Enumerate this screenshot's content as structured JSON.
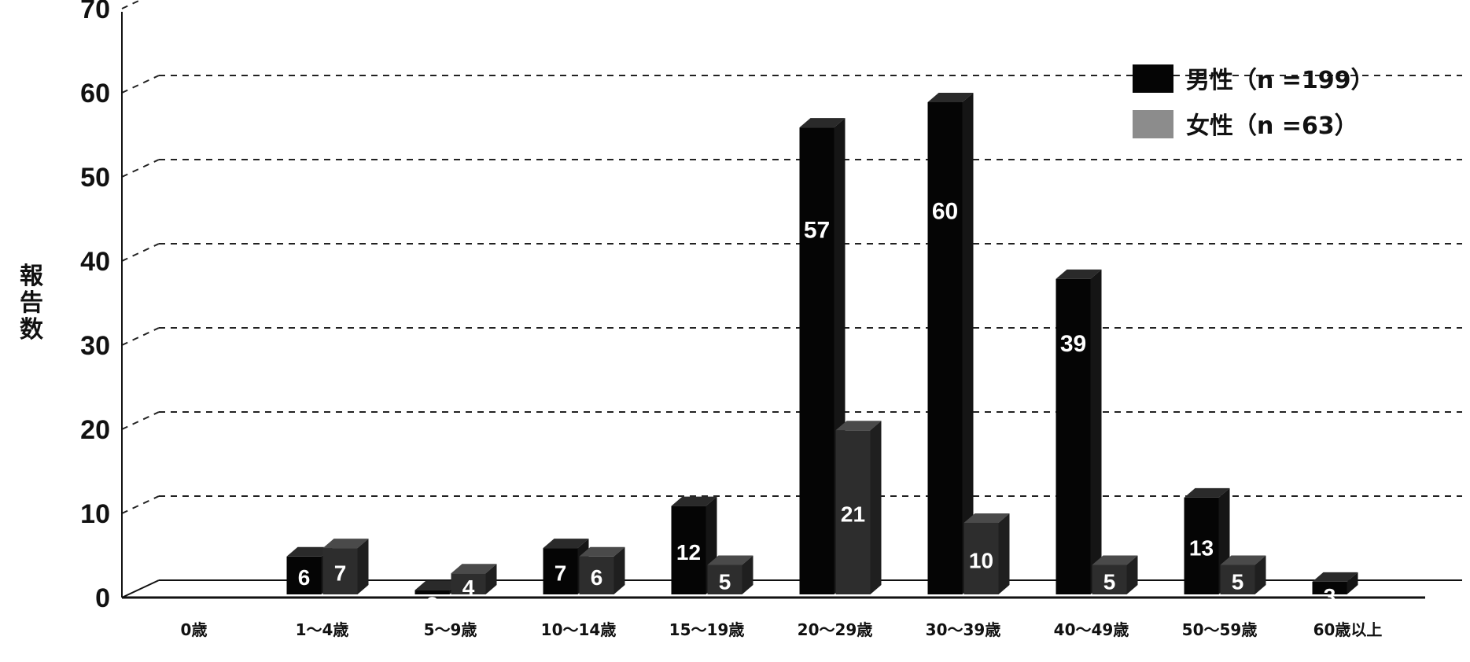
{
  "chart_data": {
    "type": "bar",
    "title": "",
    "xlabel": "",
    "ylabel": "報告数",
    "ylim": [
      0,
      70
    ],
    "yticks": [
      0,
      10,
      20,
      30,
      40,
      50,
      60,
      70
    ],
    "grid": true,
    "legend_position": "top-right",
    "categories": [
      "0歳",
      "1～4歳",
      "5～9歳",
      "10～14歳",
      "15～19歳",
      "20～29歳",
      "30～39歳",
      "40～49歳",
      "50～59歳",
      "60歳以上"
    ],
    "series": [
      {
        "name": "男性（n =199）",
        "color": "#000000",
        "values": [
          0,
          6,
          2,
          7,
          12,
          57,
          60,
          39,
          13,
          3
        ]
      },
      {
        "name": "女性（n =63）",
        "color": "#333333",
        "values": [
          0,
          7,
          4,
          6,
          5,
          21,
          10,
          5,
          5,
          0
        ]
      }
    ],
    "data_labels": {
      "male": [
        "",
        "6",
        "2",
        "7",
        "12",
        "57",
        "60",
        "39",
        "13",
        "3"
      ],
      "female": [
        "",
        "7",
        "4",
        "6",
        "5",
        "21",
        "10",
        "5",
        "5",
        ""
      ]
    }
  }
}
